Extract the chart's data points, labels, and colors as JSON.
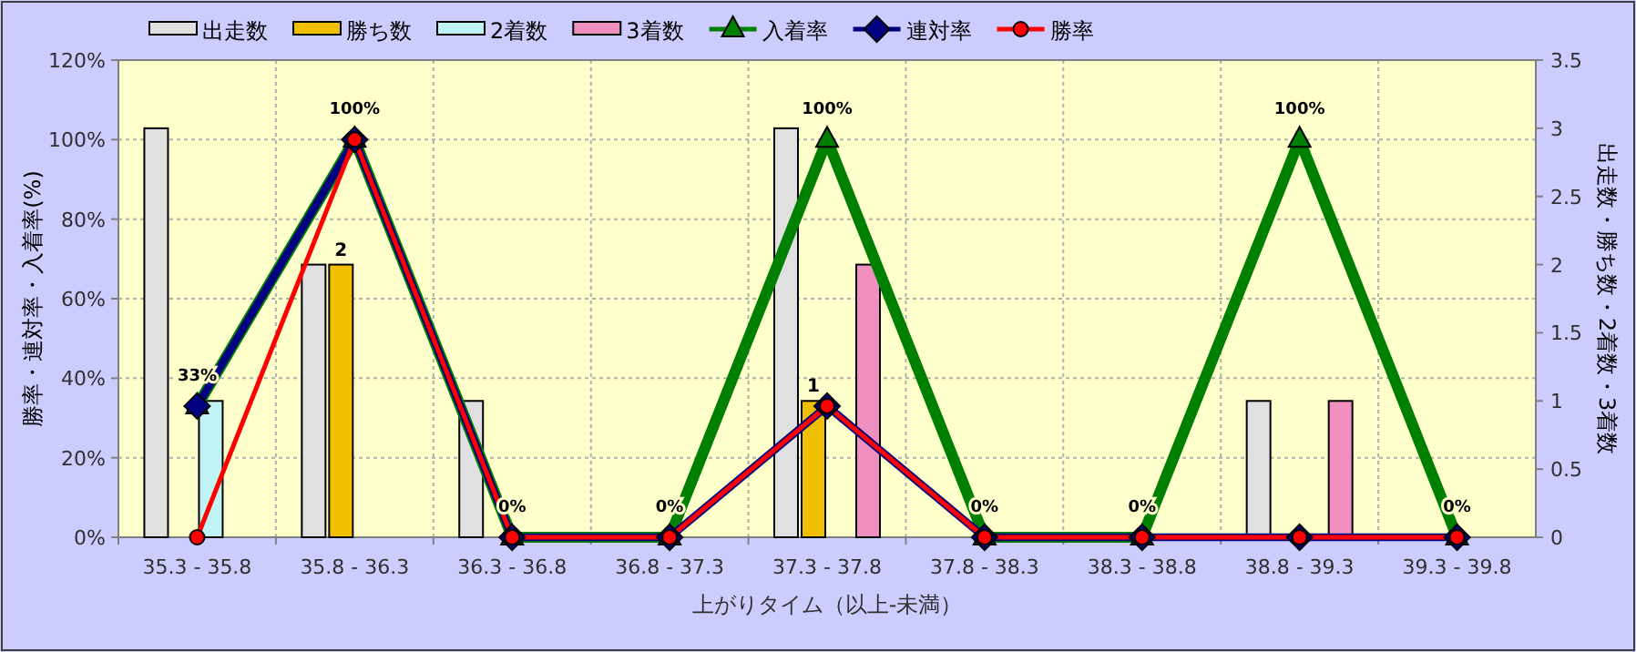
{
  "chart_data": {
    "type": "bar",
    "categories": [
      "35.3 - 35.8",
      "35.8 - 36.3",
      "36.3 - 36.8",
      "36.8 - 37.3",
      "37.3 - 37.8",
      "37.8 - 38.3",
      "38.3 - 38.8",
      "38.8 - 39.3",
      "39.3 - 39.8"
    ],
    "series": [
      {
        "name": "出走数",
        "axis": "y2",
        "color": "#e0e0e0",
        "values": [
          3,
          2,
          1,
          0,
          3,
          0,
          0,
          1,
          0
        ]
      },
      {
        "name": "勝ち数",
        "axis": "y2",
        "color": "#f0c000",
        "values": [
          0,
          2,
          0,
          0,
          1,
          0,
          0,
          0,
          0
        ],
        "value_labels": [
          null,
          "2",
          null,
          null,
          "1",
          null,
          null,
          null,
          null
        ]
      },
      {
        "name": "2着数",
        "axis": "y2",
        "color": "#c0f4f4",
        "values": [
          1,
          0,
          0,
          0,
          0,
          0,
          0,
          0,
          0
        ]
      },
      {
        "name": "3着数",
        "axis": "y2",
        "color": "#f090c0",
        "values": [
          0,
          0,
          0,
          0,
          2,
          0,
          0,
          1,
          0
        ]
      },
      {
        "name": "入着率",
        "type": "line",
        "color": "#008000",
        "marker": "triangle",
        "values": [
          33,
          100,
          0,
          0,
          100,
          0,
          0,
          100,
          0
        ],
        "value_labels": [
          "33%",
          "100%",
          "0%",
          "0%",
          "100%",
          "0%",
          "0%",
          "100%",
          "0%"
        ]
      },
      {
        "name": "連対率",
        "type": "line",
        "color": "#000080",
        "marker": "diamond",
        "values": [
          33,
          100,
          0,
          0,
          33,
          0,
          0,
          0,
          0
        ]
      },
      {
        "name": "勝率",
        "type": "line",
        "color": "#ff0000",
        "marker": "circle",
        "values": [
          0,
          100,
          0,
          0,
          33,
          0,
          0,
          0,
          0
        ]
      }
    ],
    "xlabel": "上がりタイム（以上-未満）",
    "ylabel": "勝率・連対率・入着率(%)",
    "y2label": "出走数・勝ち数・2着数・3着数",
    "ylim": [
      0,
      120
    ],
    "yticks": [
      {
        "value": 0,
        "label": "0%"
      },
      {
        "value": 20,
        "label": "20%"
      },
      {
        "value": 40,
        "label": "40%"
      },
      {
        "value": 60,
        "label": "60%"
      },
      {
        "value": 80,
        "label": "80%"
      },
      {
        "value": 100,
        "label": "100%"
      },
      {
        "value": 120,
        "label": "120%"
      }
    ],
    "y2lim": [
      0,
      3.5
    ],
    "y2ticks": [
      0,
      0.5,
      1,
      1.5,
      2,
      2.5,
      3,
      3.5
    ],
    "grid": true,
    "legend": "top"
  }
}
